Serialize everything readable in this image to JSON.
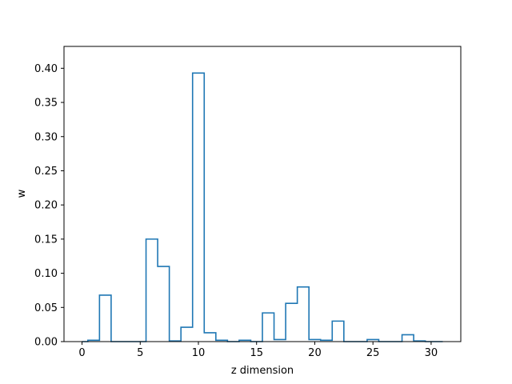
{
  "chart_data": {
    "type": "step",
    "title": "",
    "xlabel": "z dimension",
    "ylabel": "w",
    "xlim": [
      -1.55,
      32.55
    ],
    "ylim": [
      0,
      0.432
    ],
    "x_ticks": [
      0,
      5,
      10,
      15,
      20,
      25,
      30
    ],
    "x_tick_labels": [
      "0",
      "5",
      "10",
      "15",
      "20",
      "25",
      "30"
    ],
    "y_ticks": [
      0.0,
      0.05,
      0.1,
      0.15,
      0.2,
      0.25,
      0.3,
      0.35,
      0.4
    ],
    "y_tick_labels": [
      "0.00",
      "0.05",
      "0.10",
      "0.15",
      "0.20",
      "0.25",
      "0.30",
      "0.35",
      "0.40"
    ],
    "grid": false,
    "line_color": "#1f77b4",
    "x": [
      0,
      1,
      2,
      3,
      4,
      5,
      6,
      7,
      8,
      9,
      10,
      11,
      12,
      13,
      14,
      15,
      16,
      17,
      18,
      19,
      20,
      21,
      22,
      23,
      24,
      25,
      26,
      27,
      28,
      29,
      30,
      31
    ],
    "values": [
      0.0,
      0.002,
      0.068,
      0.0,
      0.0,
      0.0,
      0.15,
      0.11,
      0.001,
      0.021,
      0.393,
      0.013,
      0.002,
      0.0,
      0.002,
      0.0,
      0.042,
      0.003,
      0.056,
      0.08,
      0.003,
      0.002,
      0.03,
      0.0,
      0.0,
      0.003,
      0.0,
      0.0,
      0.01,
      0.001,
      0.0,
      0.0
    ]
  }
}
